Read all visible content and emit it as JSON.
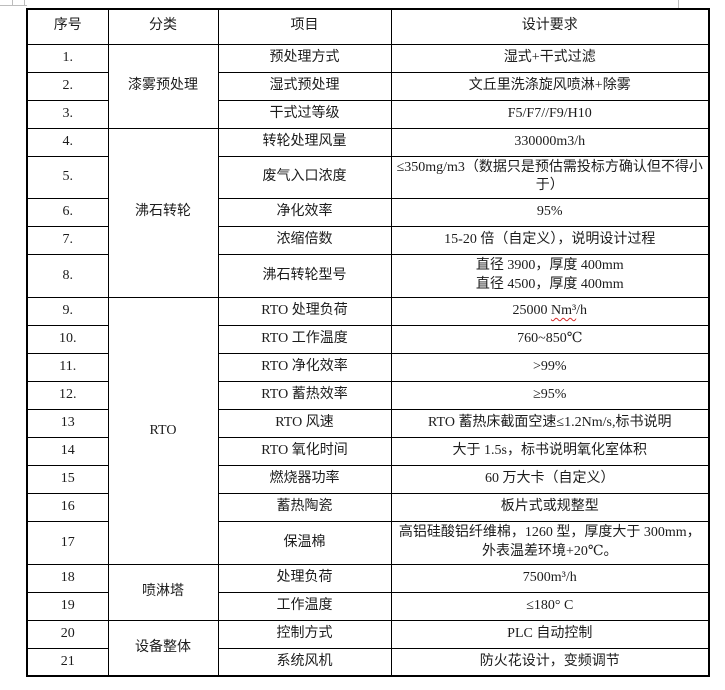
{
  "page": {
    "background_color": "#ffffff",
    "border_color": "#000000",
    "text_color": "#1c1c1c",
    "spell_error_color": "#d42a2a"
  },
  "table": {
    "headers": [
      {
        "label": "序号"
      },
      {
        "label": "分类"
      },
      {
        "label": "项目"
      },
      {
        "label": "设计要求"
      }
    ],
    "categories": [
      {
        "label": "漆雾预处理",
        "rowspan": 3
      },
      {
        "label": "沸石转轮",
        "rowspan": 5
      },
      {
        "label": "RTO",
        "rowspan": 9
      },
      {
        "label": "喷淋塔",
        "rowspan": 2
      },
      {
        "label": "设备整体",
        "rowspan": 2
      }
    ],
    "rows": [
      {
        "no": "1.",
        "category_index": 0,
        "item": "预处理方式",
        "requirement": "湿式+干式过滤"
      },
      {
        "no": "2.",
        "item": "湿式预处理",
        "requirement": "文丘里洗涤旋风喷淋+除雾"
      },
      {
        "no": "3.",
        "item": "干式过等级",
        "requirement": "F5/F7//F9/H10"
      },
      {
        "no": "4.",
        "category_index": 1,
        "item": "转轮处理风量",
        "requirement": "330000m3/h"
      },
      {
        "no": "5.",
        "item": "废气入口浓度",
        "requirement": "≤350mg/m3（数据只是预估需投标方确认但不得小于）"
      },
      {
        "no": "6.",
        "item": "净化效率",
        "requirement": "95%"
      },
      {
        "no": "7.",
        "item": "浓缩倍数",
        "requirement": "15-20 倍（自定义），说明设计过程"
      },
      {
        "no": "8.",
        "item": "沸石转轮型号",
        "requirement": "直径 3900，厚度 400mm\n直径 4500，厚度 400mm"
      },
      {
        "no": "9.",
        "category_index": 2,
        "item": "RTO 处理负荷",
        "requirement": "25000 Nm³/h",
        "spell_error_text": "Nm³"
      },
      {
        "no": "10.",
        "item": "RTO 工作温度",
        "requirement": "760~850℃"
      },
      {
        "no": "11.",
        "item": "RTO 净化效率",
        "requirement": ">99%"
      },
      {
        "no": "12.",
        "item": "RTO 蓄热效率",
        "requirement": "≥95%"
      },
      {
        "no": "13",
        "item": "RTO 风速",
        "requirement": "RTO 蓄热床截面空速≤1.2Nm/s,标书说明"
      },
      {
        "no": "14",
        "item": "RTO 氧化时间",
        "requirement": "大于 1.5s，标书说明氧化室体积"
      },
      {
        "no": "15",
        "item": "燃烧器功率",
        "requirement": "60 万大卡（自定义）"
      },
      {
        "no": "16",
        "item": "蓄热陶瓷",
        "requirement": "板片式或规整型"
      },
      {
        "no": "17",
        "item": "保温棉",
        "requirement": "高铝硅酸铝纤维棉，1260 型，厚度大于 300mm，外表温差环境+20℃。"
      },
      {
        "no": "18",
        "category_index": 3,
        "item": "处理负荷",
        "requirement": "7500m³/h"
      },
      {
        "no": "19",
        "item": "工作温度",
        "requirement": "≤180° C"
      },
      {
        "no": "20",
        "category_index": 4,
        "item": "控制方式",
        "requirement": "PLC 自动控制"
      },
      {
        "no": "21",
        "item": "系统风机",
        "requirement": "防火花设计，变频调节"
      }
    ]
  }
}
